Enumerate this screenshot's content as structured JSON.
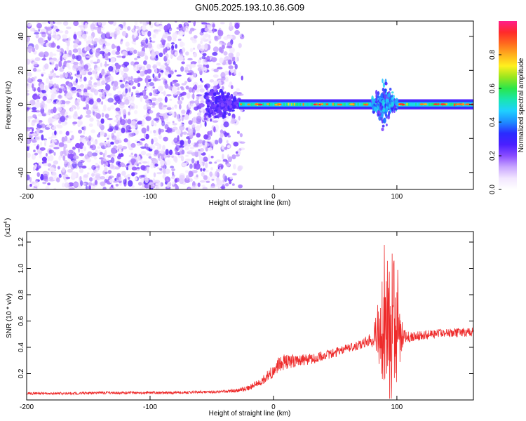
{
  "title": "GN05.2025.193.10.36.G09",
  "colors": {
    "snr_line": "#ee2b2b",
    "axis": "#000000",
    "colormap": [
      "#ffffff",
      "#f2e6ff",
      "#c9a6ff",
      "#8a4dff",
      "#4a1fff",
      "#2a2bff",
      "#1e8cff",
      "#1fd0ff",
      "#19e6b0",
      "#2ae64a",
      "#9ae61e",
      "#fff01e",
      "#ffb01e",
      "#ff6a1e",
      "#ff2a2a",
      "#ff1e8c"
    ]
  },
  "chart_data": [
    {
      "type": "heatmap",
      "xlabel": "Height of straight line (km)",
      "ylabel": "Frequency (Hz)",
      "xlim": [
        -200,
        162
      ],
      "ylim": [
        -50,
        49
      ],
      "xticks": [
        -200,
        -100,
        0,
        100
      ],
      "yticks": [
        -40,
        -20,
        0,
        20,
        40
      ],
      "colorbar": {
        "label": "Normalized spectral amplitude",
        "range": [
          0,
          1
        ],
        "ticks": [
          "0.0",
          "0.2",
          "0.4",
          "0.6",
          "0.8"
        ]
      },
      "regions": [
        {
          "x": [
            -200,
            -25
          ],
          "freq": [
            -50,
            49
          ],
          "amplitude": [
            0.05,
            0.25
          ],
          "pattern": "broadband-noise"
        },
        {
          "x": [
            -55,
            -25
          ],
          "freq": [
            -15,
            15
          ],
          "amplitude": [
            0.2,
            0.3
          ],
          "pattern": "funnel"
        },
        {
          "x": [
            -28,
            162
          ],
          "freq": [
            -3,
            3
          ],
          "amplitude": [
            0.3,
            0.9
          ],
          "pattern": "carrier-band"
        },
        {
          "x": [
            80,
            100
          ],
          "freq": [
            -20,
            15
          ],
          "amplitude": [
            0.2,
            0.5
          ],
          "pattern": "scintillation-spread"
        }
      ]
    },
    {
      "type": "line",
      "xlabel": "Height of straight line (km)",
      "ylabel": "SNR (10 * v/v)",
      "yscale_note": "(x10",
      "yscale_exp": "4",
      "xlim": [
        -200,
        162
      ],
      "ylim": [
        0.0,
        1.28
      ],
      "xticks": [
        -200,
        -100,
        0,
        100
      ],
      "yticks": [
        "0.2",
        "0.4",
        "0.6",
        "0.8",
        "1.0",
        "1.2"
      ],
      "series": [
        {
          "x": [
            -200,
            -180,
            -160,
            -140,
            -120,
            -100,
            -80,
            -60,
            -50,
            -40,
            -30,
            -20,
            -10,
            0,
            5,
            10,
            20,
            30,
            40,
            50,
            60,
            70,
            75,
            80,
            85,
            90,
            95,
            100,
            105,
            110,
            120,
            130,
            140,
            150,
            162
          ],
          "y": [
            0.05,
            0.05,
            0.05,
            0.055,
            0.055,
            0.055,
            0.055,
            0.06,
            0.06,
            0.065,
            0.07,
            0.09,
            0.14,
            0.22,
            0.28,
            0.29,
            0.3,
            0.31,
            0.33,
            0.36,
            0.39,
            0.42,
            0.44,
            0.46,
            0.5,
            0.55,
            0.6,
            0.55,
            0.48,
            0.48,
            0.49,
            0.5,
            0.51,
            0.51,
            0.52
          ],
          "noise": [
            0.01,
            0.01,
            0.01,
            0.01,
            0.01,
            0.01,
            0.01,
            0.01,
            0.01,
            0.012,
            0.015,
            0.02,
            0.03,
            0.05,
            0.06,
            0.06,
            0.045,
            0.04,
            0.04,
            0.035,
            0.035,
            0.035,
            0.04,
            0.06,
            0.25,
            0.5,
            0.6,
            0.4,
            0.06,
            0.04,
            0.035,
            0.035,
            0.035,
            0.035,
            0.035
          ]
        }
      ]
    }
  ]
}
